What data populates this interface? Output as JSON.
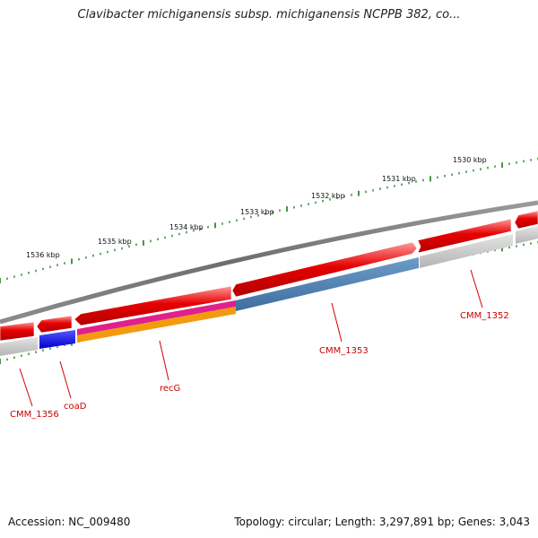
{
  "title": "Clavibacter michiganensis subsp. michiganensis NCPPB 382, co...",
  "footer": {
    "accession": "Accession: NC_009480",
    "topology": "Topology: circular; Length: 3,297,891 bp; Genes: 3,043"
  },
  "scale": {
    "tick_color": "#1a7a1a",
    "labels": [
      "1530 kbp",
      "1531 kbp",
      "1532 kbp",
      "1533 kbp",
      "1534 kbp",
      "1535 kbp",
      "1536 kbp"
    ]
  },
  "genes": [
    {
      "label": "CMM_1352",
      "color": "#cc0000"
    },
    {
      "label": "CMM_1353",
      "color": "#cc0000"
    },
    {
      "label": "recG",
      "color": "#cc0000"
    },
    {
      "label": "coaD",
      "color": "#cc0000"
    },
    {
      "label": "CMM_1356",
      "color": "#cc0000"
    }
  ],
  "colors": {
    "backbone": "#808080",
    "cds": "#e60000",
    "blue_feature": "#1a1ae6",
    "steel_blue": "#4a7fb0",
    "magenta": "#e0208c",
    "orange": "#f39a10",
    "gray_feature": "#c8c8c8"
  }
}
